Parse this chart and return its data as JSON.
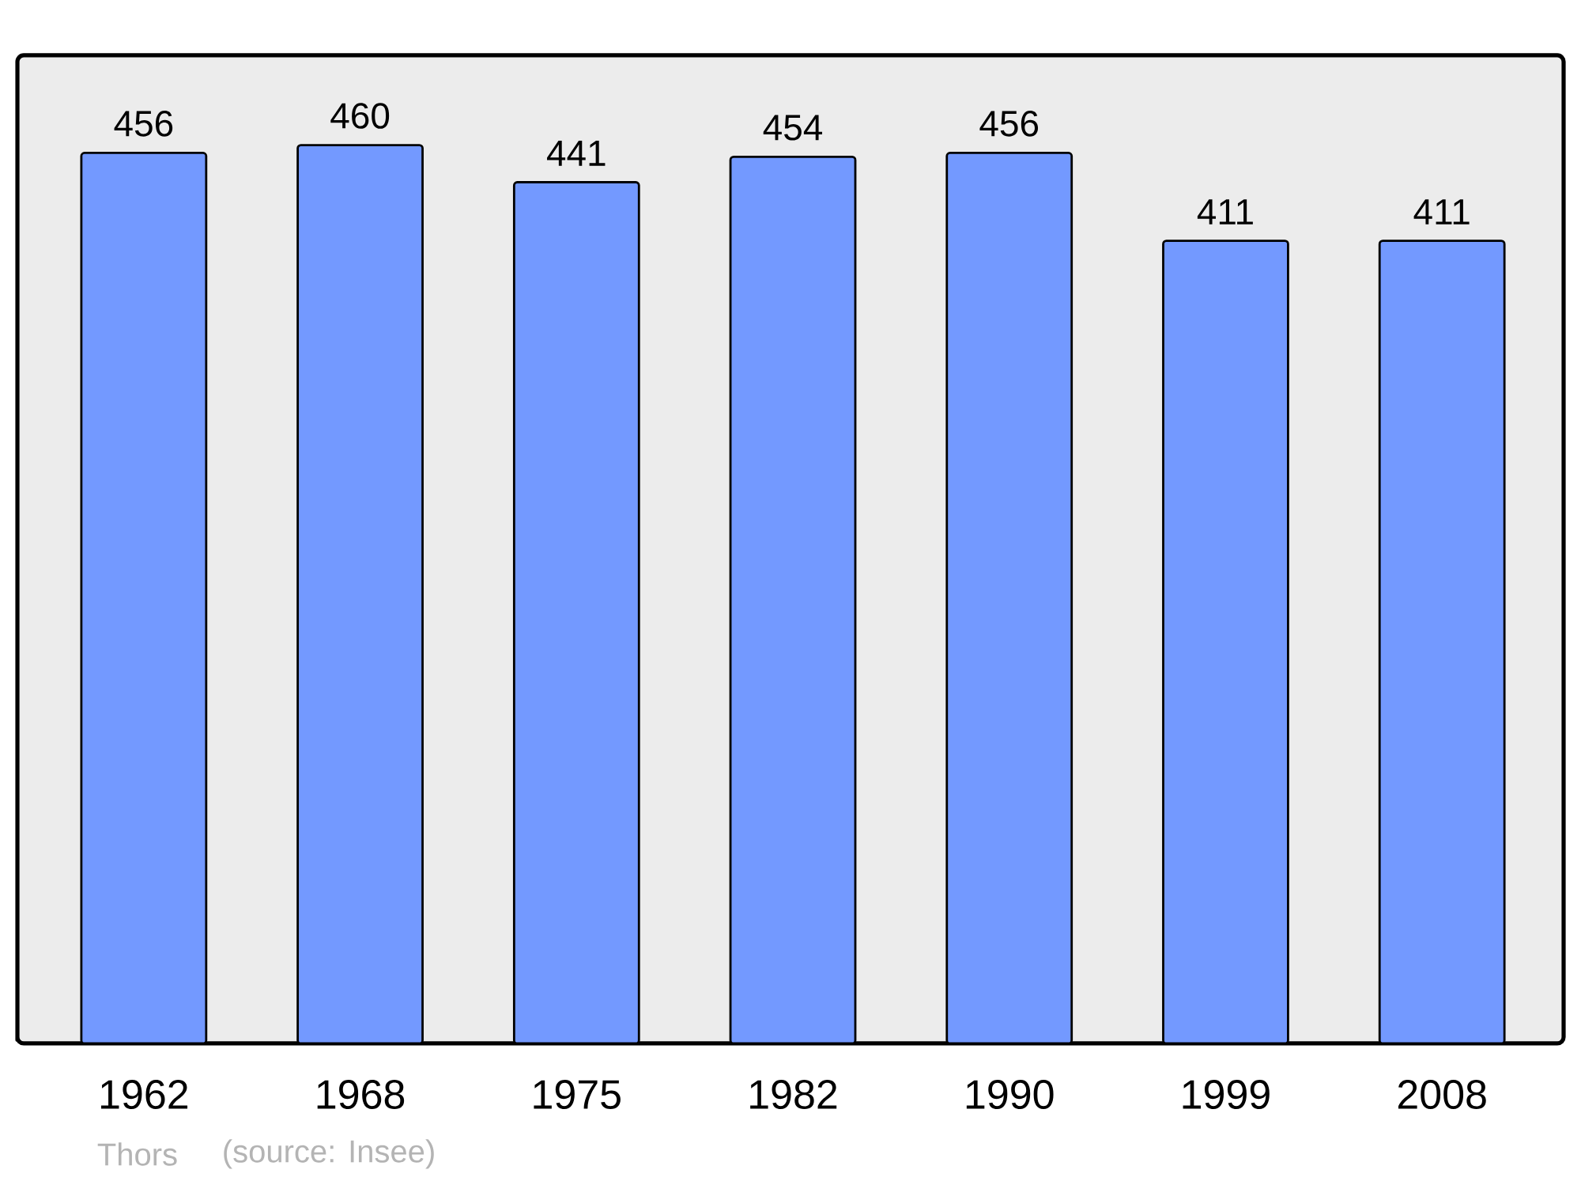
{
  "chart_data": {
    "type": "bar",
    "categories": [
      "1962",
      "1968",
      "1975",
      "1982",
      "1990",
      "1999",
      "2008"
    ],
    "values": [
      456,
      460,
      441,
      454,
      456,
      411,
      411
    ],
    "color": "#7399ff",
    "ylim": [
      0,
      506
    ],
    "data_labels": true,
    "tick_labels": "x",
    "annotations": [
      "Thors",
      "(source: Insee)"
    ]
  }
}
